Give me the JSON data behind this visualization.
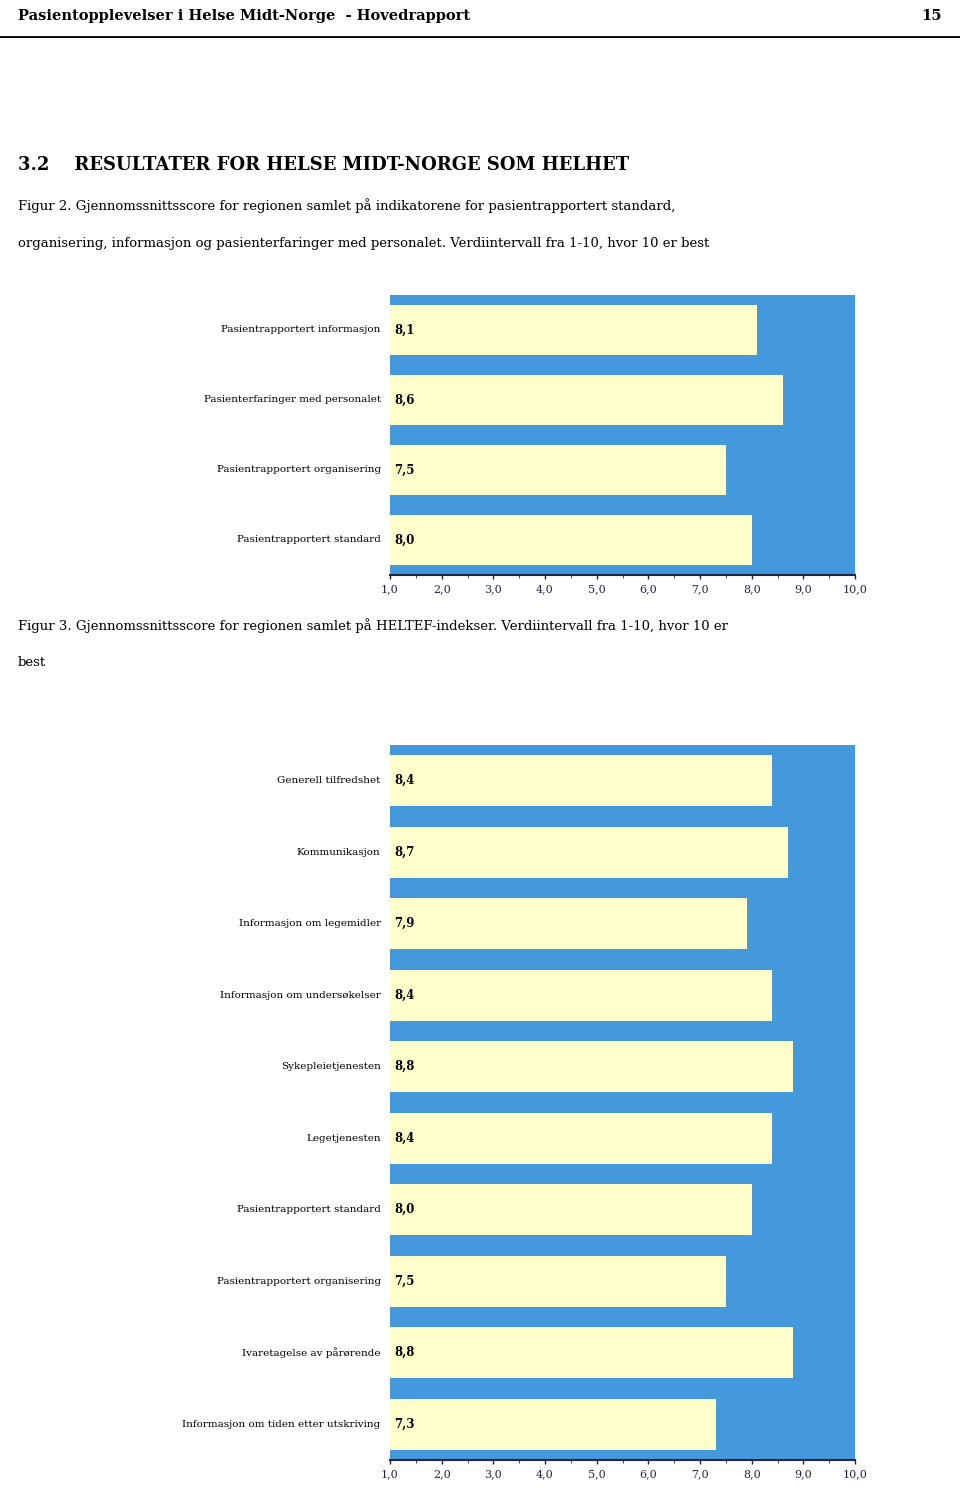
{
  "page_header": "Pasientopplevelser i Helse Midt-Norge  - Hovedrapport",
  "page_number": "15",
  "section_title": "3.2    RESULTATER FOR HELSE MIDT-NORGE SOM HELHET",
  "fig2_caption_line1": "Figur 2. Gjennomssnittsscore for regionen samlet på indikatorene for pasientrapportert standard,",
  "fig2_caption_line2": "organisering, informasjon og pasienterfaringer med personalet. Verdiintervall fra 1-10, hvor 10 er best",
  "fig2_categories": [
    "Pasientrapportert informasjon",
    "Pasienterfaringer med personalet",
    "Pasientrapportert organisering",
    "Pasientrapportert standard"
  ],
  "fig2_values": [
    8.1,
    8.6,
    7.5,
    8.0
  ],
  "fig3_caption_line1": "Figur 3. Gjennomssnittsscore for regionen samlet på HELTEF-indekser. Verdiintervall fra 1-10, hvor 10 er",
  "fig3_caption_line2": "best",
  "fig3_categories": [
    "Generell tilfredshet",
    "Kommunikasjon",
    "Informasjon om legemidler",
    "Informasjon om undersøkelser",
    "Sykepleietjenesten",
    "Legetjenesten",
    "Pasientrapportert standard",
    "Pasientrapportert organisering",
    "Ivaretagelse av pårørende",
    "Informasjon om tiden etter utskriving"
  ],
  "fig3_values": [
    8.4,
    8.7,
    7.9,
    8.4,
    8.8,
    8.4,
    8.0,
    7.5,
    8.8,
    7.3
  ],
  "bar_yellow": "#FFFFCC",
  "bar_blue_bg": "#4499DD",
  "axis_min": 1.0,
  "axis_max": 10.0,
  "axis_ticks": [
    1.0,
    2.0,
    3.0,
    4.0,
    5.0,
    6.0,
    7.0,
    8.0,
    9.0,
    10.0
  ],
  "axis_tick_labels": [
    "1,0",
    "2,0",
    "3,0",
    "4,0",
    "5,0",
    "6,0",
    "7,0",
    "8,0",
    "9,0",
    "10,0"
  ],
  "label_fontsize": 7.5,
  "value_fontsize": 8.5,
  "caption_fontsize": 9.5,
  "header_fontsize": 10.5,
  "section_fontsize": 13,
  "background_color": "#ffffff"
}
